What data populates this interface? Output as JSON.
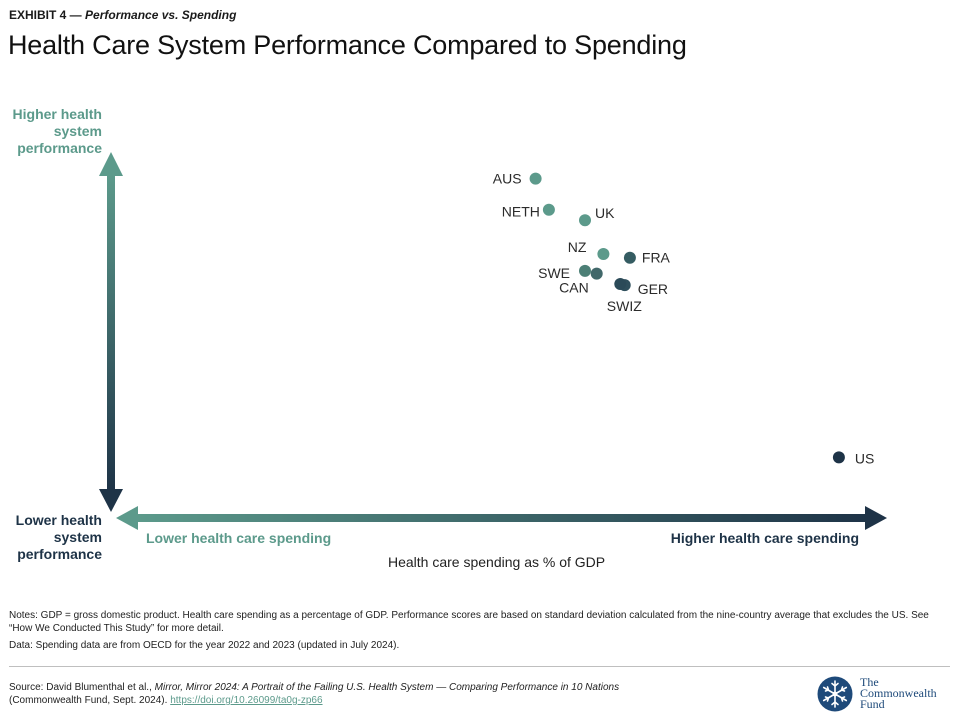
{
  "header": {
    "exhibit_lead": "EXHIBIT 4 —",
    "exhibit_em": "Performance vs. Spending",
    "title": "Health Care System Performance Compared to Spending"
  },
  "axes": {
    "y_high": "Higher health system performance",
    "y_low": "Lower health system performance",
    "x_low": "Lower health care spending",
    "x_high": "Higher health care spending",
    "x_title": "Health care spending as % of GDP"
  },
  "chart_data": {
    "type": "scatter",
    "title": "Health Care System Performance Compared to Spending",
    "xlabel": "Health care spending as % of GDP",
    "ylabel": "",
    "xlim": [
      0,
      100
    ],
    "ylim": [
      0,
      100
    ],
    "grid": false,
    "points": [
      {
        "label": "AUS",
        "x": 54.3,
        "y": 94.5,
        "color": "#5c9a8b"
      },
      {
        "label": "NETH",
        "x": 56.1,
        "y": 85.3,
        "color": "#5c9a8b"
      },
      {
        "label": "UK",
        "x": 61.0,
        "y": 82.2,
        "color": "#5c9a8b"
      },
      {
        "label": "NZ",
        "x": 63.5,
        "y": 72.2,
        "color": "#5c9a8b"
      },
      {
        "label": "FRA",
        "x": 67.1,
        "y": 71.1,
        "color": "#355c62"
      },
      {
        "label": "SWE",
        "x": 61.0,
        "y": 67.2,
        "color": "#4c7f76"
      },
      {
        "label": "CAN",
        "x": 62.6,
        "y": 66.4,
        "color": "#41686a"
      },
      {
        "label": "GER",
        "x": 66.4,
        "y": 63.0,
        "color": "#2f4f5c"
      },
      {
        "label": "SWIZ",
        "x": 65.8,
        "y": 63.3,
        "color": "#2b4a58"
      },
      {
        "label": "US",
        "x": 95.5,
        "y": 12.0,
        "color": "#1e3347"
      }
    ]
  },
  "footer": {
    "notes_1": "Notes: GDP = gross domestic product. Health care spending as a percentage of GDP. Performance scores are based on standard deviation calculated from the nine-country average that excludes the US. See “How We Conducted This Study” for more detail.",
    "notes_2": "Data: Spending data are from OECD for the year 2022 and 2023 (updated in July 2024).",
    "source_pre": "Source: David Blumenthal et al., ",
    "source_book": "Mirror, Mirror 2024: A Portrait of the Failing U.S. Health System — Comparing Performance in 10 Nations",
    "source_post": "(Commonwealth Fund, Sept. 2024). ",
    "source_link": "https://doi.org/10.26099/ta0g-zp66",
    "logo_line1": "The",
    "logo_line2": "Commonwealth",
    "logo_line3": "Fund"
  },
  "colors": {
    "teal": "#5c9a8b",
    "navy": "#1e3347"
  }
}
